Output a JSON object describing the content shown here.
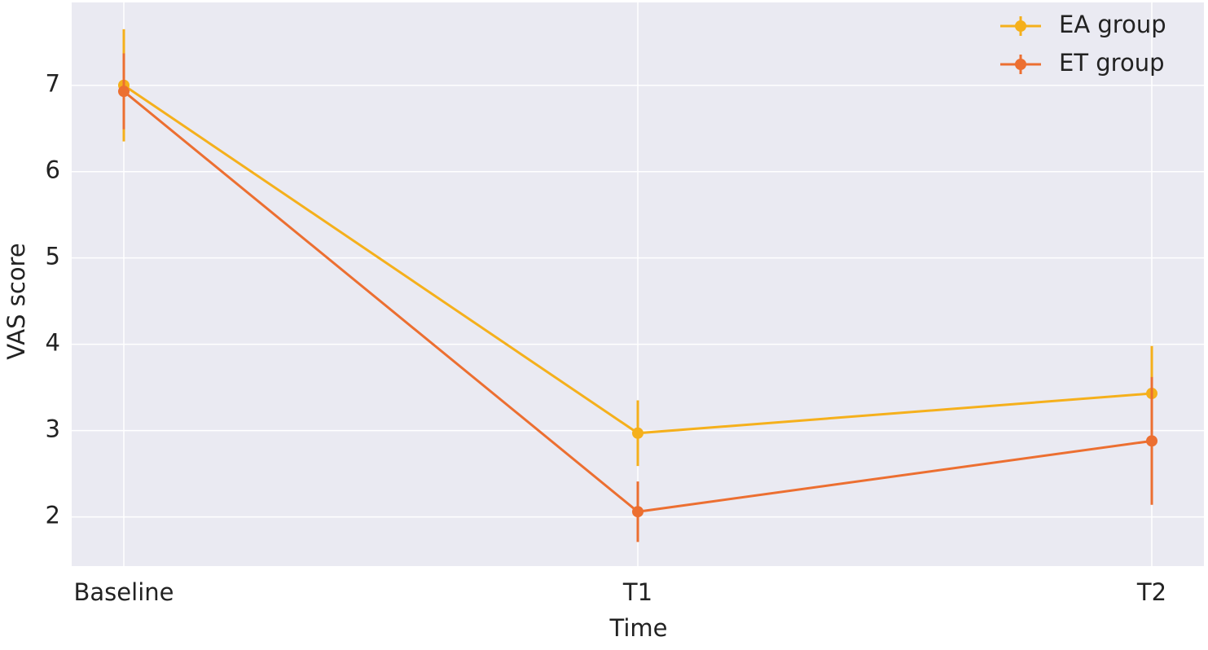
{
  "chart_data": {
    "type": "line",
    "x_label": "Time",
    "y_label": "VAS score",
    "categories": [
      "Baseline",
      "T1",
      "T2"
    ],
    "series": [
      {
        "name": "EA group",
        "color": "#f5b01c",
        "values": [
          7.0,
          2.97,
          3.43
        ],
        "errors": [
          0.65,
          0.38,
          0.55
        ]
      },
      {
        "name": "ET group",
        "color": "#ec6f31",
        "values": [
          6.93,
          2.06,
          2.88
        ],
        "errors": [
          0.44,
          0.35,
          0.74
        ]
      }
    ],
    "ylim": [
      1.43,
      7.96
    ],
    "yticks": [
      2,
      3,
      4,
      5,
      6,
      7
    ],
    "grid": true,
    "legend": "upper right",
    "background": "#eaeaf2"
  }
}
